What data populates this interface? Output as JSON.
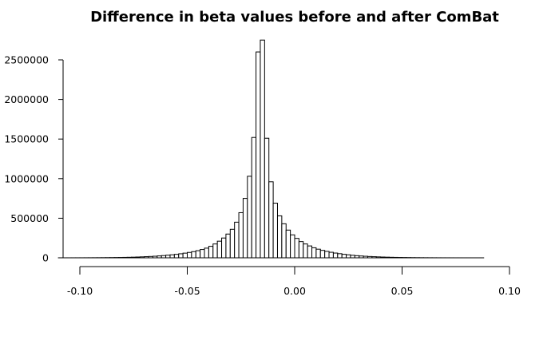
{
  "chart_data": {
    "type": "bar",
    "title": "Difference in beta values before and after ComBat",
    "xlabel": "",
    "ylabel": "",
    "xlim": [
      -0.11,
      0.108
    ],
    "ylim": [
      0,
      2500000
    ],
    "bin_width": 0.002,
    "grid": false,
    "legend": "none",
    "x_ticks": [
      {
        "value": -0.1,
        "label": "-0.10"
      },
      {
        "value": -0.05,
        "label": "-0.05"
      },
      {
        "value": 0.0,
        "label": "0.00"
      },
      {
        "value": 0.05,
        "label": "0.05"
      },
      {
        "value": 0.1,
        "label": "0.10"
      }
    ],
    "y_ticks": [
      {
        "value": 0,
        "label": "0"
      },
      {
        "value": 500000,
        "label": "500000"
      },
      {
        "value": 1000000,
        "label": "1000000"
      },
      {
        "value": 1500000,
        "label": "1500000"
      },
      {
        "value": 2000000,
        "label": "2000000"
      },
      {
        "value": 2500000,
        "label": "2500000"
      }
    ],
    "bins_start": [
      -0.11,
      -0.108,
      -0.106,
      -0.104,
      -0.102,
      -0.1,
      -0.098,
      -0.096,
      -0.094,
      -0.092,
      -0.09,
      -0.088,
      -0.086,
      -0.084,
      -0.082,
      -0.08,
      -0.078,
      -0.076,
      -0.074,
      -0.072,
      -0.07,
      -0.068,
      -0.066,
      -0.064,
      -0.062,
      -0.06,
      -0.058,
      -0.056,
      -0.054,
      -0.052,
      -0.05,
      -0.048,
      -0.046,
      -0.044,
      -0.042,
      -0.04,
      -0.038,
      -0.036,
      -0.034,
      -0.032,
      -0.03,
      -0.028,
      -0.026,
      -0.024,
      -0.022,
      -0.02,
      -0.018,
      -0.016,
      -0.014,
      -0.012,
      -0.01,
      -0.008,
      -0.006,
      -0.004,
      -0.002,
      0.0,
      0.002,
      0.004,
      0.006,
      0.008,
      0.01,
      0.012,
      0.014,
      0.016,
      0.018,
      0.02,
      0.022,
      0.024,
      0.026,
      0.028,
      0.03,
      0.032,
      0.034,
      0.036,
      0.038,
      0.04,
      0.042,
      0.044,
      0.046,
      0.048,
      0.05,
      0.052,
      0.054,
      0.056,
      0.058,
      0.06,
      0.062,
      0.064,
      0.066,
      0.068,
      0.07,
      0.072,
      0.074,
      0.076,
      0.078,
      0.08,
      0.082,
      0.084,
      0.086,
      0.088,
      0.09,
      0.092,
      0.094,
      0.096,
      0.098,
      0.1,
      0.102,
      0.104,
      0.106
    ],
    "values": [
      200,
      250,
      300,
      400,
      500,
      600,
      800,
      1000,
      1300,
      1600,
      2000,
      2500,
      3000,
      3800,
      4600,
      5600,
      6800,
      8200,
      10000,
      12000,
      14500,
      17000,
      20000,
      24000,
      28000,
      33000,
      38000,
      44000,
      51000,
      59000,
      68000,
      78000,
      90000,
      105000,
      122000,
      145000,
      175000,
      210000,
      250000,
      300000,
      360000,
      450000,
      570000,
      750000,
      1030000,
      1520000,
      2600000,
      2750000,
      1510000,
      960000,
      690000,
      530000,
      430000,
      350000,
      290000,
      245000,
      205000,
      175000,
      150000,
      127000,
      109000,
      94000,
      81000,
      70000,
      60000,
      52000,
      44000,
      38000,
      32000,
      27000,
      23000,
      19500,
      16500,
      14000,
      11800,
      9800,
      8200,
      6800,
      5600,
      4600,
      3800,
      3100,
      2500,
      2000,
      1600,
      1300,
      1000,
      800,
      600,
      500,
      400,
      300,
      250,
      200,
      150,
      120,
      100,
      80,
      60,
      50,
      40,
      30,
      20,
      20,
      10,
      10,
      10,
      10,
      10
    ]
  }
}
